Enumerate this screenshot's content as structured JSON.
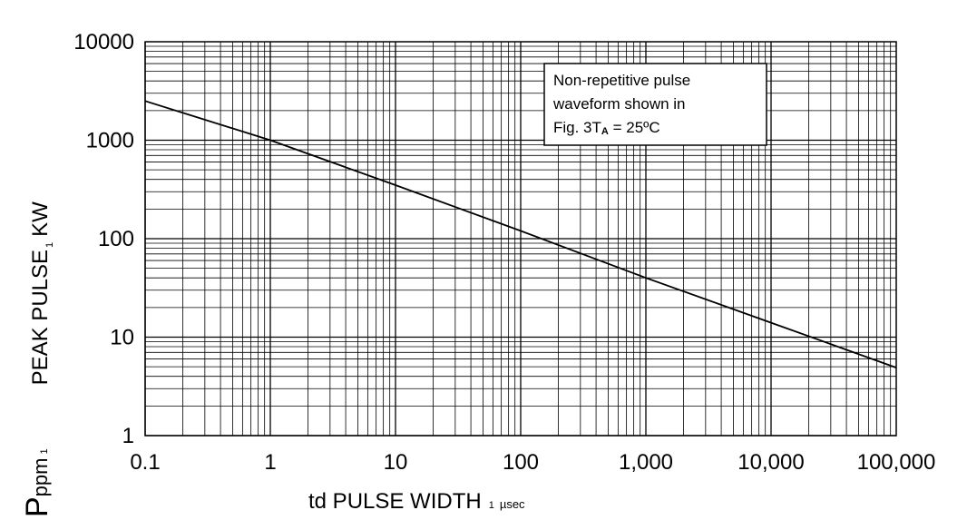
{
  "chart_data": {
    "type": "line",
    "scale": {
      "x": "log",
      "y": "log"
    },
    "xlim": [
      0.1,
      100000
    ],
    "ylim": [
      1,
      10000
    ],
    "grid": true,
    "x_tick_labels": [
      "0.1",
      "1",
      "10",
      "100",
      "1,000",
      "10,000",
      "100,000"
    ],
    "y_tick_labels": [
      "1",
      "10",
      "100",
      "1000",
      "10000"
    ],
    "xlabel": {
      "main": "td PULSE WIDTH",
      "sub": "1",
      "unit": "µsec"
    },
    "ylabel": {
      "part1": "P",
      "part1_sub": "ppm",
      "sep1": "1",
      "part2": "PEAK PULSE",
      "sep2": "1",
      "part3": "KW"
    },
    "series": [
      {
        "x": [
          0.1,
          1,
          10,
          100,
          1000,
          10000,
          100000
        ],
        "y": [
          2500,
          1000,
          350,
          120,
          40,
          14,
          4.9
        ]
      }
    ],
    "annotation": {
      "line1": "Non-repetitive pulse",
      "line2": "waveform shown in",
      "line3_a": "Fig. 3T",
      "line3_sub": "A",
      "line3_b": " = 25ºC"
    }
  }
}
